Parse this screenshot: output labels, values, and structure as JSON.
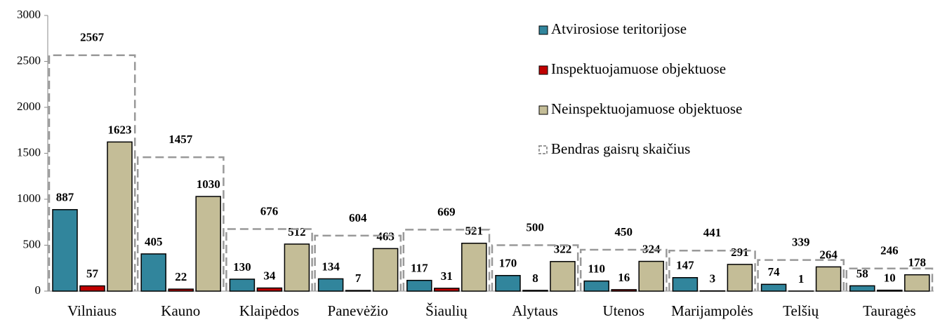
{
  "chart_data": {
    "type": "bar",
    "categories": [
      "Vilniaus",
      "Kauno",
      "Klaipėdos",
      "Panevėžio",
      "Šiaulių",
      "Alytaus",
      "Utenos",
      "Marijampolės",
      "Telšių",
      "Tauragės"
    ],
    "series": [
      {
        "name": "Atvirosiose teritorijose",
        "color": "#31859c",
        "values": [
          887,
          405,
          130,
          134,
          117,
          170,
          110,
          147,
          74,
          58
        ]
      },
      {
        "name": "Inspektuojamuose objektuose",
        "color": "#c00000",
        "values": [
          57,
          22,
          34,
          7,
          31,
          8,
          16,
          3,
          1,
          10
        ]
      },
      {
        "name": "Neinspektuojamuose objektuose",
        "color": "#c4bd97",
        "values": [
          1623,
          1030,
          512,
          463,
          521,
          322,
          324,
          291,
          264,
          178
        ]
      },
      {
        "name": "Bendras gaisrų skaičius",
        "color": "#999999",
        "dashed": true,
        "values": [
          2567,
          1457,
          676,
          604,
          669,
          500,
          450,
          441,
          339,
          246
        ]
      }
    ],
    "ylim": [
      0,
      3000
    ],
    "yticks": [
      0,
      500,
      1000,
      1500,
      2000,
      2500,
      3000
    ]
  }
}
